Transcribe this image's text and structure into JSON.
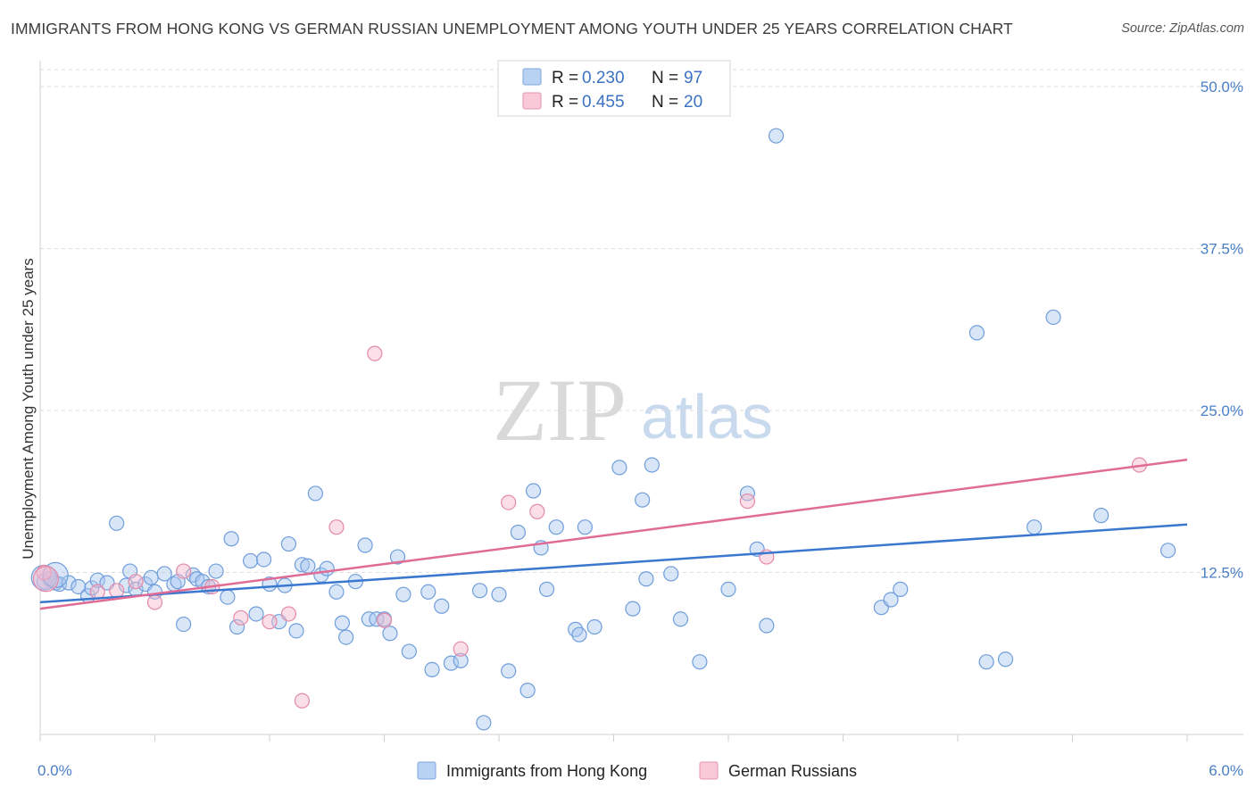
{
  "header": {
    "title": "IMMIGRANTS FROM HONG KONG VS GERMAN RUSSIAN UNEMPLOYMENT AMONG YOUTH UNDER 25 YEARS CORRELATION CHART",
    "source": "Source: ZipAtlas.com"
  },
  "watermark": {
    "zip": "ZIP",
    "atlas": "atlas"
  },
  "legend": {
    "r_label": "R = ",
    "n_label": "N = ",
    "entries": [
      {
        "r": "0.230",
        "n": "97",
        "color": "#a9c8f0"
      },
      {
        "r": "0.455",
        "n": "20",
        "color": "#f6b8cb"
      }
    ]
  },
  "bottom_legend": [
    {
      "label": "Immigrants from Hong Kong",
      "color": "#a9c8f0"
    },
    {
      "label": "German Russians",
      "color": "#f6b8cb"
    }
  ],
  "chart_data": {
    "type": "scatter",
    "title": "IMMIGRANTS FROM HONG KONG VS GERMAN RUSSIAN UNEMPLOYMENT AMONG YOUTH UNDER 25 YEARS CORRELATION CHART",
    "xlabel": "",
    "ylabel": "Unemployment Among Youth under 25 years",
    "xlim": [
      0,
      6
    ],
    "ylim": [
      0,
      50
    ],
    "x_tick_labels": [
      "0.0%",
      "6.0%"
    ],
    "y_ticks": [
      12.5,
      25,
      37.5,
      50
    ],
    "y_tick_labels": [
      "12.5%",
      "25.0%",
      "37.5%",
      "50.0%"
    ],
    "grid": true,
    "legend_position": "top-center",
    "series": [
      {
        "name": "Immigrants from Hong Kong",
        "color": "#a9c8f0",
        "edge": "#6f9edb",
        "trend": {
          "x": [
            0,
            6
          ],
          "y": [
            10.2,
            16.2
          ],
          "color": "#3a78cf"
        },
        "points": [
          [
            0.02,
            11.8
          ],
          [
            0.05,
            12.0
          ],
          [
            0.08,
            11.7
          ],
          [
            0.1,
            11.6
          ],
          [
            0.15,
            11.7
          ],
          [
            0.2,
            11.4
          ],
          [
            0.25,
            10.7
          ],
          [
            0.27,
            11.3
          ],
          [
            0.3,
            11.9
          ],
          [
            0.35,
            11.7
          ],
          [
            0.4,
            16.3
          ],
          [
            0.45,
            11.5
          ],
          [
            0.47,
            12.6
          ],
          [
            0.5,
            11.2
          ],
          [
            0.55,
            11.6
          ],
          [
            0.58,
            12.1
          ],
          [
            0.6,
            11.0
          ],
          [
            0.65,
            12.4
          ],
          [
            0.7,
            11.6
          ],
          [
            0.72,
            11.8
          ],
          [
            0.75,
            8.5
          ],
          [
            0.8,
            12.3
          ],
          [
            0.82,
            12.0
          ],
          [
            0.85,
            11.8
          ],
          [
            0.88,
            11.4
          ],
          [
            0.92,
            12.6
          ],
          [
            0.98,
            10.6
          ],
          [
            1.0,
            15.1
          ],
          [
            1.03,
            8.3
          ],
          [
            1.1,
            13.4
          ],
          [
            1.13,
            9.3
          ],
          [
            1.17,
            13.5
          ],
          [
            1.2,
            11.6
          ],
          [
            1.25,
            8.7
          ],
          [
            1.28,
            11.5
          ],
          [
            1.3,
            14.7
          ],
          [
            1.34,
            8.0
          ],
          [
            1.37,
            13.1
          ],
          [
            1.4,
            13.0
          ],
          [
            1.44,
            18.6
          ],
          [
            1.47,
            12.3
          ],
          [
            1.5,
            12.8
          ],
          [
            1.55,
            11.0
          ],
          [
            1.58,
            8.6
          ],
          [
            1.6,
            7.5
          ],
          [
            1.65,
            11.8
          ],
          [
            1.7,
            14.6
          ],
          [
            1.72,
            8.9
          ],
          [
            1.76,
            8.9
          ],
          [
            1.8,
            8.9
          ],
          [
            1.83,
            7.8
          ],
          [
            1.87,
            13.7
          ],
          [
            1.9,
            10.8
          ],
          [
            1.93,
            6.4
          ],
          [
            2.03,
            11.0
          ],
          [
            2.05,
            5.0
          ],
          [
            2.1,
            9.9
          ],
          [
            2.15,
            5.5
          ],
          [
            2.2,
            5.7
          ],
          [
            2.3,
            11.1
          ],
          [
            2.32,
            0.9
          ],
          [
            2.4,
            10.8
          ],
          [
            2.45,
            4.9
          ],
          [
            2.5,
            15.6
          ],
          [
            2.55,
            3.4
          ],
          [
            2.58,
            18.8
          ],
          [
            2.62,
            14.4
          ],
          [
            2.65,
            11.2
          ],
          [
            2.7,
            16.0
          ],
          [
            2.8,
            8.1
          ],
          [
            2.82,
            7.7
          ],
          [
            2.85,
            16.0
          ],
          [
            2.9,
            8.3
          ],
          [
            3.03,
            20.6
          ],
          [
            3.1,
            9.7
          ],
          [
            3.15,
            18.1
          ],
          [
            3.17,
            12.0
          ],
          [
            3.2,
            20.8
          ],
          [
            3.3,
            12.4
          ],
          [
            3.35,
            8.9
          ],
          [
            3.45,
            5.6
          ],
          [
            3.6,
            11.2
          ],
          [
            3.7,
            18.6
          ],
          [
            3.75,
            14.3
          ],
          [
            3.8,
            8.4
          ],
          [
            3.85,
            46.2
          ],
          [
            4.4,
            9.8
          ],
          [
            4.45,
            10.4
          ],
          [
            4.5,
            11.2
          ],
          [
            4.9,
            31.0
          ],
          [
            4.95,
            5.6
          ],
          [
            5.05,
            5.8
          ],
          [
            5.2,
            16.0
          ],
          [
            5.3,
            32.2
          ],
          [
            5.55,
            16.9
          ],
          [
            5.9,
            14.2
          ]
        ],
        "large_points": [
          [
            0.02,
            12.1
          ],
          [
            0.08,
            12.3
          ]
        ]
      },
      {
        "name": "German Russians",
        "color": "#f6b8cb",
        "edge": "#e48aa8",
        "trend": {
          "x": [
            0,
            6
          ],
          "y": [
            9.7,
            21.2
          ],
          "color": "#e06b95"
        },
        "points": [
          [
            0.02,
            12.5
          ],
          [
            0.3,
            11.0
          ],
          [
            0.4,
            11.1
          ],
          [
            0.5,
            11.8
          ],
          [
            0.6,
            10.2
          ],
          [
            0.75,
            12.6
          ],
          [
            0.9,
            11.4
          ],
          [
            1.05,
            9.0
          ],
          [
            1.2,
            8.7
          ],
          [
            1.3,
            9.3
          ],
          [
            1.37,
            2.6
          ],
          [
            1.55,
            16.0
          ],
          [
            1.8,
            8.8
          ],
          [
            1.75,
            29.4
          ],
          [
            2.2,
            6.6
          ],
          [
            2.45,
            17.9
          ],
          [
            2.6,
            17.2
          ],
          [
            3.7,
            18.0
          ],
          [
            3.8,
            13.7
          ],
          [
            5.75,
            20.8
          ]
        ],
        "large_points": [
          [
            0.03,
            12.0
          ]
        ]
      }
    ]
  }
}
